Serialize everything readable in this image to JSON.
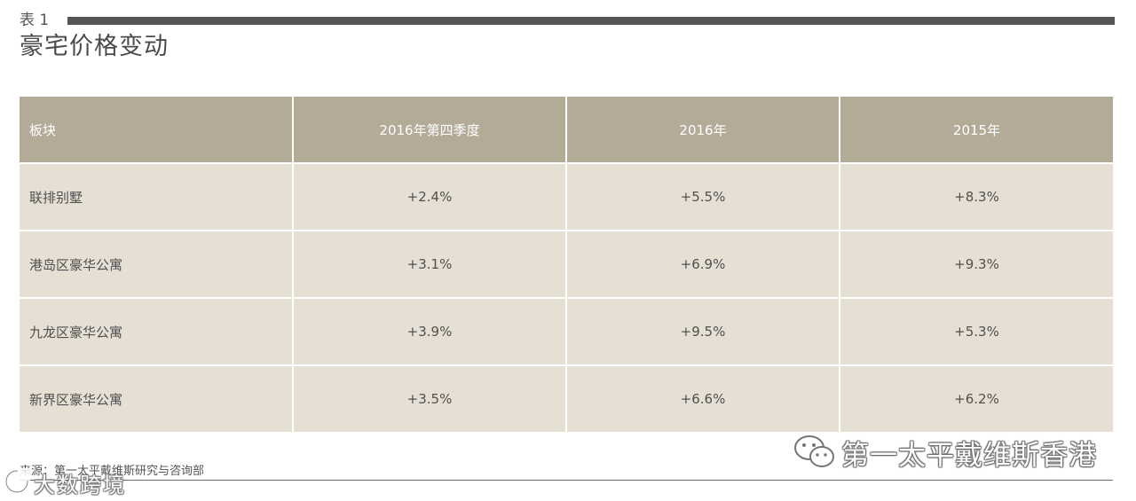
{
  "header": {
    "table_label": "表 1",
    "title": "豪宅价格变动"
  },
  "table": {
    "columns": [
      "板块",
      "2016年第四季度",
      "2016年",
      "2015年"
    ],
    "rows": [
      [
        "联排别墅",
        "+2.4%",
        "+5.5%",
        "+8.3%"
      ],
      [
        "港岛区豪华公寓",
        "+3.1%",
        "+6.9%",
        "+9.3%"
      ],
      [
        "九龙区豪华公寓",
        "+3.9%",
        "+9.5%",
        "+5.3%"
      ],
      [
        "新界区豪华公寓",
        "+3.5%",
        "+6.6%",
        "+6.2%"
      ]
    ]
  },
  "footer": {
    "source": "来源：第一太平戴维斯研究与咨询部"
  },
  "watermarks": {
    "right": "第一太平戴维斯香港",
    "right_icon": "wechat-icon",
    "left": "大数跨境",
    "left_icon": "logo-icon"
  },
  "colors": {
    "header_bg": "#b3ab98",
    "row_bg": "#e6dfd3",
    "rule": "#555555"
  }
}
